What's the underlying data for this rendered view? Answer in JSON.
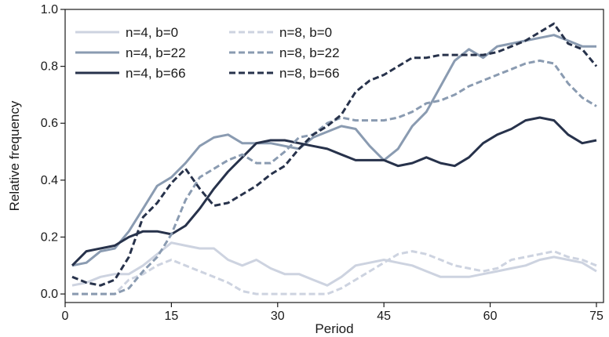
{
  "chart_data": {
    "type": "line",
    "title": "",
    "xlabel": "Period",
    "ylabel": "Relative frequency",
    "xlim": [
      0,
      76
    ],
    "ylim": [
      -0.03,
      1.0
    ],
    "xticks": [
      0,
      15,
      30,
      45,
      60,
      75
    ],
    "yticks": [
      0.0,
      0.2,
      0.4,
      0.6,
      0.8,
      1.0
    ],
    "ytick_labels": [
      "0.0",
      "0.2",
      "0.4",
      "0.6",
      "0.8",
      "1.0"
    ],
    "grid": false,
    "legend_position": "top-left",
    "series": [
      {
        "name": "n=4, b=0",
        "color": "#cdd3e0",
        "dash": false,
        "points": [
          [
            1,
            0.03
          ],
          [
            3,
            0.04
          ],
          [
            5,
            0.06
          ],
          [
            7,
            0.07
          ],
          [
            9,
            0.07
          ],
          [
            11,
            0.1
          ],
          [
            13,
            0.14
          ],
          [
            15,
            0.18
          ],
          [
            17,
            0.17
          ],
          [
            19,
            0.16
          ],
          [
            21,
            0.16
          ],
          [
            23,
            0.12
          ],
          [
            25,
            0.1
          ],
          [
            27,
            0.12
          ],
          [
            29,
            0.09
          ],
          [
            31,
            0.07
          ],
          [
            33,
            0.07
          ],
          [
            35,
            0.05
          ],
          [
            37,
            0.03
          ],
          [
            39,
            0.06
          ],
          [
            41,
            0.1
          ],
          [
            43,
            0.11
          ],
          [
            45,
            0.12
          ],
          [
            47,
            0.11
          ],
          [
            49,
            0.1
          ],
          [
            51,
            0.08
          ],
          [
            53,
            0.06
          ],
          [
            55,
            0.06
          ],
          [
            57,
            0.06
          ],
          [
            59,
            0.07
          ],
          [
            61,
            0.08
          ],
          [
            63,
            0.09
          ],
          [
            65,
            0.1
          ],
          [
            67,
            0.12
          ],
          [
            69,
            0.13
          ],
          [
            71,
            0.12
          ],
          [
            73,
            0.11
          ],
          [
            75,
            0.08
          ]
        ]
      },
      {
        "name": "n=4, b=22",
        "color": "#8a9bb1",
        "dash": false,
        "points": [
          [
            1,
            0.1
          ],
          [
            3,
            0.11
          ],
          [
            5,
            0.15
          ],
          [
            7,
            0.16
          ],
          [
            9,
            0.22
          ],
          [
            11,
            0.3
          ],
          [
            13,
            0.38
          ],
          [
            15,
            0.41
          ],
          [
            17,
            0.46
          ],
          [
            19,
            0.52
          ],
          [
            21,
            0.55
          ],
          [
            23,
            0.56
          ],
          [
            25,
            0.53
          ],
          [
            27,
            0.53
          ],
          [
            29,
            0.53
          ],
          [
            31,
            0.52
          ],
          [
            33,
            0.51
          ],
          [
            35,
            0.55
          ],
          [
            37,
            0.57
          ],
          [
            39,
            0.59
          ],
          [
            41,
            0.58
          ],
          [
            43,
            0.52
          ],
          [
            45,
            0.47
          ],
          [
            47,
            0.51
          ],
          [
            49,
            0.59
          ],
          [
            51,
            0.64
          ],
          [
            53,
            0.73
          ],
          [
            55,
            0.82
          ],
          [
            57,
            0.86
          ],
          [
            59,
            0.83
          ],
          [
            61,
            0.87
          ],
          [
            63,
            0.88
          ],
          [
            65,
            0.89
          ],
          [
            67,
            0.9
          ],
          [
            69,
            0.91
          ],
          [
            71,
            0.89
          ],
          [
            73,
            0.87
          ],
          [
            75,
            0.87
          ]
        ]
      },
      {
        "name": "n=4, b=66",
        "color": "#27324b",
        "dash": false,
        "points": [
          [
            1,
            0.1
          ],
          [
            3,
            0.15
          ],
          [
            5,
            0.16
          ],
          [
            7,
            0.17
          ],
          [
            9,
            0.2
          ],
          [
            11,
            0.22
          ],
          [
            13,
            0.22
          ],
          [
            15,
            0.21
          ],
          [
            17,
            0.24
          ],
          [
            19,
            0.3
          ],
          [
            21,
            0.37
          ],
          [
            23,
            0.43
          ],
          [
            25,
            0.48
          ],
          [
            27,
            0.53
          ],
          [
            29,
            0.54
          ],
          [
            31,
            0.54
          ],
          [
            33,
            0.53
          ],
          [
            35,
            0.52
          ],
          [
            37,
            0.51
          ],
          [
            39,
            0.49
          ],
          [
            41,
            0.47
          ],
          [
            43,
            0.47
          ],
          [
            45,
            0.47
          ],
          [
            47,
            0.45
          ],
          [
            49,
            0.46
          ],
          [
            51,
            0.48
          ],
          [
            53,
            0.46
          ],
          [
            55,
            0.45
          ],
          [
            57,
            0.48
          ],
          [
            59,
            0.53
          ],
          [
            61,
            0.56
          ],
          [
            63,
            0.58
          ],
          [
            65,
            0.61
          ],
          [
            67,
            0.62
          ],
          [
            69,
            0.61
          ],
          [
            71,
            0.56
          ],
          [
            73,
            0.53
          ],
          [
            75,
            0.54
          ]
        ]
      },
      {
        "name": "n=8, b=0",
        "color": "#cdd3e0",
        "dash": true,
        "points": [
          [
            1,
            0.0
          ],
          [
            3,
            0.0
          ],
          [
            5,
            0.0
          ],
          [
            7,
            0.0
          ],
          [
            9,
            0.05
          ],
          [
            11,
            0.07
          ],
          [
            13,
            0.1
          ],
          [
            15,
            0.12
          ],
          [
            17,
            0.1
          ],
          [
            19,
            0.08
          ],
          [
            21,
            0.06
          ],
          [
            23,
            0.04
          ],
          [
            25,
            0.01
          ],
          [
            27,
            0.0
          ],
          [
            29,
            0.0
          ],
          [
            31,
            0.0
          ],
          [
            33,
            0.0
          ],
          [
            35,
            0.0
          ],
          [
            37,
            0.0
          ],
          [
            39,
            0.02
          ],
          [
            41,
            0.05
          ],
          [
            43,
            0.08
          ],
          [
            45,
            0.11
          ],
          [
            47,
            0.14
          ],
          [
            49,
            0.15
          ],
          [
            51,
            0.14
          ],
          [
            53,
            0.12
          ],
          [
            55,
            0.1
          ],
          [
            57,
            0.09
          ],
          [
            59,
            0.08
          ],
          [
            61,
            0.09
          ],
          [
            63,
            0.12
          ],
          [
            65,
            0.13
          ],
          [
            67,
            0.14
          ],
          [
            69,
            0.15
          ],
          [
            71,
            0.13
          ],
          [
            73,
            0.12
          ],
          [
            75,
            0.1
          ]
        ]
      },
      {
        "name": "n=8, b=22",
        "color": "#8a9bb1",
        "dash": true,
        "points": [
          [
            1,
            0.0
          ],
          [
            3,
            0.0
          ],
          [
            5,
            0.0
          ],
          [
            7,
            0.0
          ],
          [
            9,
            0.02
          ],
          [
            11,
            0.08
          ],
          [
            13,
            0.13
          ],
          [
            15,
            0.21
          ],
          [
            17,
            0.33
          ],
          [
            19,
            0.41
          ],
          [
            21,
            0.44
          ],
          [
            23,
            0.47
          ],
          [
            25,
            0.49
          ],
          [
            27,
            0.46
          ],
          [
            29,
            0.46
          ],
          [
            31,
            0.5
          ],
          [
            33,
            0.55
          ],
          [
            35,
            0.56
          ],
          [
            37,
            0.6
          ],
          [
            39,
            0.62
          ],
          [
            41,
            0.61
          ],
          [
            43,
            0.61
          ],
          [
            45,
            0.61
          ],
          [
            47,
            0.62
          ],
          [
            49,
            0.64
          ],
          [
            51,
            0.67
          ],
          [
            53,
            0.68
          ],
          [
            55,
            0.7
          ],
          [
            57,
            0.73
          ],
          [
            59,
            0.75
          ],
          [
            61,
            0.77
          ],
          [
            63,
            0.79
          ],
          [
            65,
            0.81
          ],
          [
            67,
            0.82
          ],
          [
            69,
            0.81
          ],
          [
            71,
            0.74
          ],
          [
            73,
            0.69
          ],
          [
            75,
            0.66
          ]
        ]
      },
      {
        "name": "n=8, b=66",
        "color": "#27324b",
        "dash": true,
        "points": [
          [
            1,
            0.06
          ],
          [
            3,
            0.04
          ],
          [
            5,
            0.03
          ],
          [
            7,
            0.05
          ],
          [
            9,
            0.13
          ],
          [
            11,
            0.27
          ],
          [
            13,
            0.32
          ],
          [
            15,
            0.39
          ],
          [
            17,
            0.44
          ],
          [
            19,
            0.37
          ],
          [
            21,
            0.31
          ],
          [
            23,
            0.32
          ],
          [
            25,
            0.35
          ],
          [
            27,
            0.38
          ],
          [
            29,
            0.42
          ],
          [
            31,
            0.45
          ],
          [
            33,
            0.51
          ],
          [
            35,
            0.56
          ],
          [
            37,
            0.59
          ],
          [
            39,
            0.63
          ],
          [
            41,
            0.71
          ],
          [
            43,
            0.75
          ],
          [
            45,
            0.77
          ],
          [
            47,
            0.8
          ],
          [
            49,
            0.83
          ],
          [
            51,
            0.83
          ],
          [
            53,
            0.84
          ],
          [
            55,
            0.84
          ],
          [
            57,
            0.84
          ],
          [
            59,
            0.84
          ],
          [
            61,
            0.85
          ],
          [
            63,
            0.87
          ],
          [
            65,
            0.89
          ],
          [
            67,
            0.92
          ],
          [
            69,
            0.95
          ],
          [
            71,
            0.88
          ],
          [
            73,
            0.86
          ],
          [
            75,
            0.8
          ]
        ]
      }
    ]
  }
}
